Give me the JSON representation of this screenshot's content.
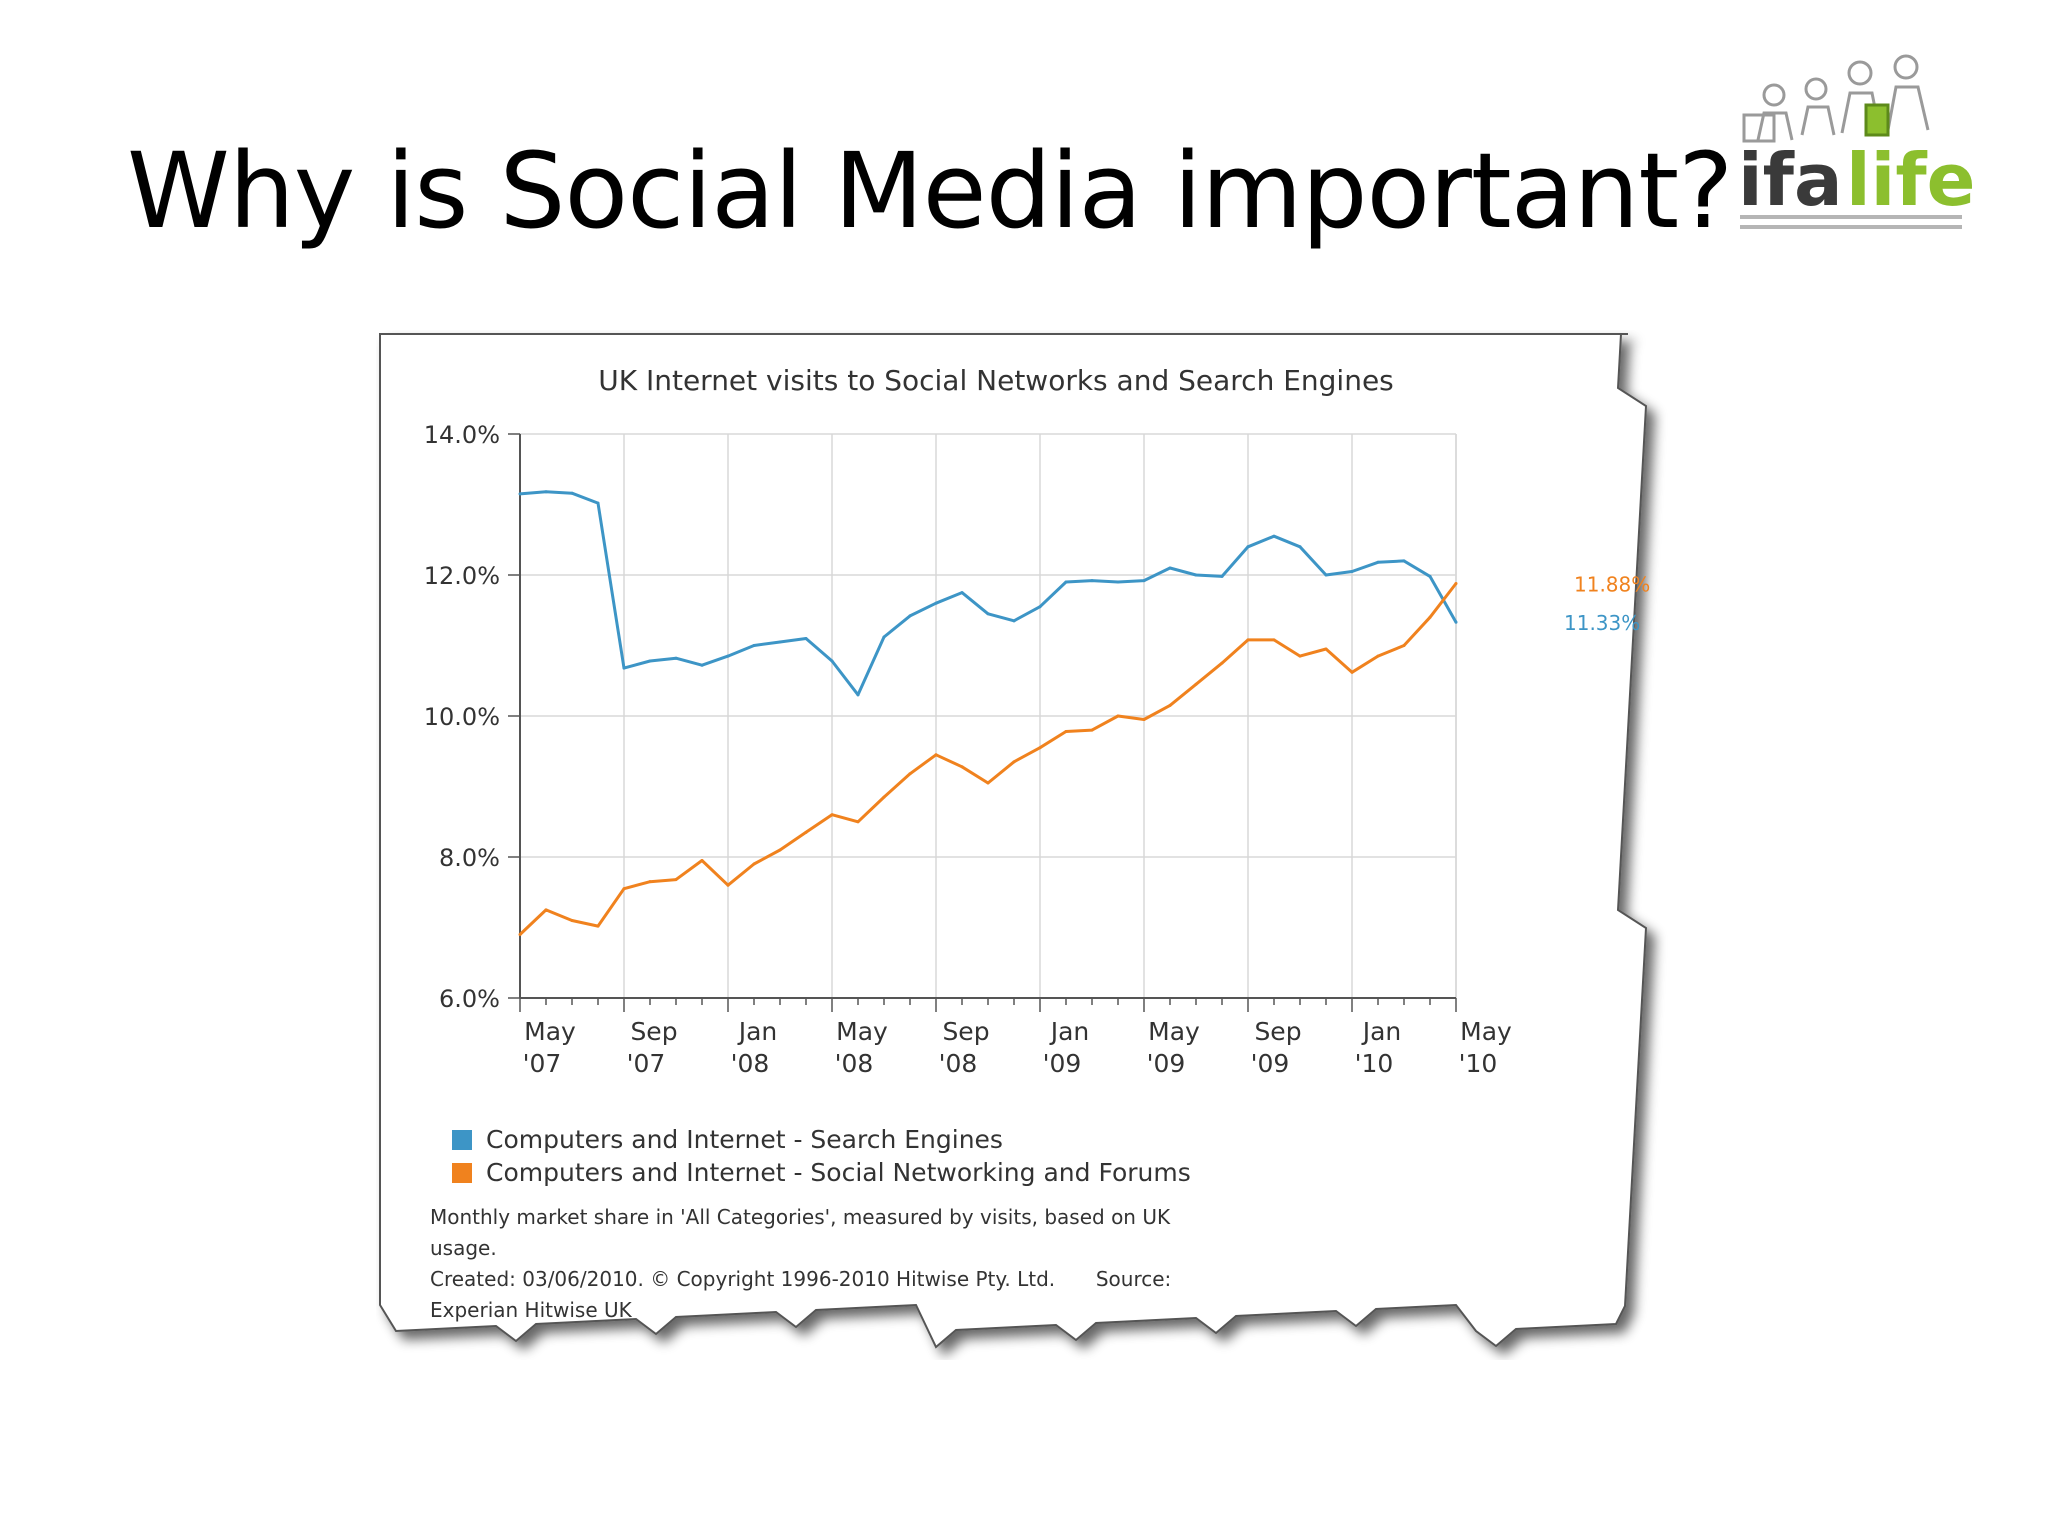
{
  "slide": {
    "title": "Why is Social Media important?"
  },
  "logo": {
    "text_part1": "ifa",
    "text_part2": "life",
    "color_dark": "#3a3a3a",
    "color_green": "#8cbf2e"
  },
  "chart_data": {
    "type": "line",
    "title": "UK Internet visits to Social Networks and Search Engines",
    "xlabel": "",
    "ylabel": "",
    "ylim": [
      6.0,
      14.0
    ],
    "y_ticks": [
      "6.0%",
      "8.0%",
      "10.0%",
      "12.0%",
      "14.0%"
    ],
    "y_tick_values": [
      6.0,
      8.0,
      10.0,
      12.0,
      14.0
    ],
    "x_ticks": [
      {
        "month": "May",
        "year": "'07"
      },
      {
        "month": "Sep",
        "year": "'07"
      },
      {
        "month": "Jan",
        "year": "'08"
      },
      {
        "month": "May",
        "year": "'08"
      },
      {
        "month": "Sep",
        "year": "'08"
      },
      {
        "month": "Jan",
        "year": "'09"
      },
      {
        "month": "May",
        "year": "'09"
      },
      {
        "month": "Sep",
        "year": "'09"
      },
      {
        "month": "Jan",
        "year": "'10"
      },
      {
        "month": "May",
        "year": "'10"
      }
    ],
    "x": [
      "2007-05",
      "2007-06",
      "2007-07",
      "2007-08",
      "2007-09",
      "2007-10",
      "2007-11",
      "2007-12",
      "2008-01",
      "2008-02",
      "2008-03",
      "2008-04",
      "2008-05",
      "2008-06",
      "2008-07",
      "2008-08",
      "2008-09",
      "2008-10",
      "2008-11",
      "2008-12",
      "2009-01",
      "2009-02",
      "2009-03",
      "2009-04",
      "2009-05",
      "2009-06",
      "2009-07",
      "2009-08",
      "2009-09",
      "2009-10",
      "2009-11",
      "2009-12",
      "2010-01",
      "2010-02",
      "2010-03",
      "2010-04",
      "2010-05"
    ],
    "grid": true,
    "legend_placement": "bottom-left",
    "series": [
      {
        "name": "Computers and Internet - Search Engines",
        "color": "#3d95c6",
        "end_label": "11.33%",
        "values": [
          13.15,
          13.18,
          13.16,
          13.02,
          10.68,
          10.78,
          10.82,
          10.72,
          10.85,
          11.0,
          11.05,
          11.1,
          10.78,
          10.3,
          11.12,
          11.42,
          11.6,
          11.75,
          11.45,
          11.35,
          11.55,
          11.9,
          11.92,
          11.9,
          11.92,
          12.1,
          12.0,
          11.98,
          12.4,
          12.55,
          12.4,
          12.0,
          12.05,
          12.18,
          12.2,
          11.98,
          11.33
        ]
      },
      {
        "name": "Computers and Internet - Social Networking and Forums",
        "color": "#f0821e",
        "end_label": "11.88%",
        "values": [
          6.9,
          7.25,
          7.1,
          7.02,
          7.55,
          7.65,
          7.68,
          7.95,
          7.6,
          7.9,
          8.1,
          8.35,
          8.6,
          8.5,
          8.85,
          9.18,
          9.45,
          9.28,
          9.05,
          9.35,
          9.55,
          9.78,
          9.8,
          10.0,
          9.95,
          10.15,
          10.45,
          10.75,
          11.08,
          11.08,
          10.85,
          10.95,
          10.62,
          10.85,
          11.0,
          11.4,
          11.88
        ]
      }
    ],
    "note_line1": "Monthly market share in 'All Categories', measured by visits, based on UK",
    "note_line2": "usage.",
    "note_line3": "Created: 03/06/2010. © Copyright 1996-2010 Hitwise Pty. Ltd.",
    "note_source": "Source: Experian Hitwise UK"
  }
}
